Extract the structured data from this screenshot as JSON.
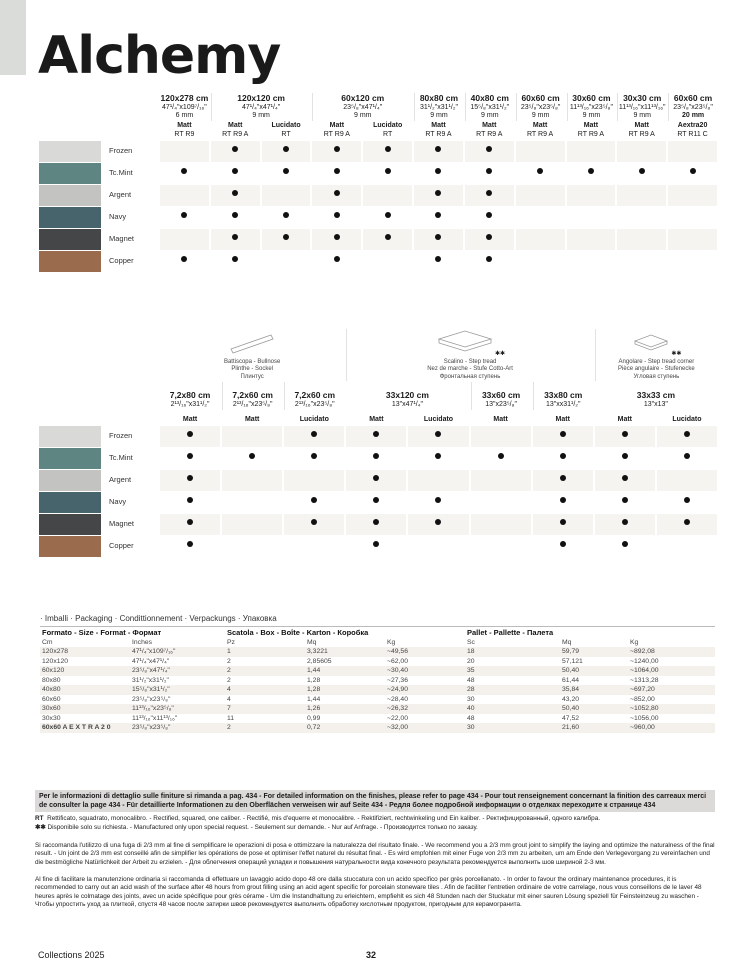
{
  "title": "Alchemy",
  "colors": {
    "row_bg": "#f6f4f0",
    "dot": "#111111"
  },
  "finishes": [
    {
      "name": "Frozen",
      "swatch": "#d9d9d7"
    },
    {
      "name": "Tc.Mint",
      "swatch": "#5e8582"
    },
    {
      "name": "Argent",
      "swatch": "#c3c3c1"
    },
    {
      "name": "Navy",
      "swatch": "#47636b"
    },
    {
      "name": "Magnet",
      "swatch": "#454647"
    },
    {
      "name": "Copper",
      "swatch": "#9b6b4d"
    }
  ],
  "top_grid": {
    "groups": [
      {
        "size": "120x278 cm",
        "inches": "47¹/₄\"x109⁷/₁₆\"",
        "thickness": "6 mm",
        "cols": [
          {
            "finish": "Matt",
            "rect": "RT R9"
          }
        ]
      },
      {
        "size": "120x120 cm",
        "inches": "47¹/₄\"x47¹/₄\"",
        "thickness": "9 mm",
        "cols": [
          {
            "finish": "Matt",
            "rect": "RT R9 A"
          },
          {
            "finish": "Lucidato",
            "rect": "RT"
          }
        ]
      },
      {
        "size": "60x120 cm",
        "inches": "23⁵/₈\"x47¹/₄\"",
        "thickness": "9 mm",
        "cols": [
          {
            "finish": "Matt",
            "rect": "RT R9 A"
          },
          {
            "finish": "Lucidato",
            "rect": "RT"
          }
        ]
      },
      {
        "size": "80x80 cm",
        "inches": "31¹/₂\"x31¹/₂\"",
        "thickness": "9 mm",
        "cols": [
          {
            "finish": "Matt",
            "rect": "RT R9 A"
          }
        ]
      },
      {
        "size": "40x80 cm",
        "inches": "15⁵/₈\"x31¹/₂\"",
        "thickness": "9 mm",
        "cols": [
          {
            "finish": "Matt",
            "rect": "RT R9 A"
          }
        ]
      },
      {
        "size": "60x60 cm",
        "inches": "23⁵/₈\"x23⁵/₈\"",
        "thickness": "9 mm",
        "cols": [
          {
            "finish": "Matt",
            "rect": "RT R9 A"
          }
        ]
      },
      {
        "size": "30x60 cm",
        "inches": "11¹³/₁₆\"x23⁵/₈\"",
        "thickness": "9 mm",
        "cols": [
          {
            "finish": "Matt",
            "rect": "RT R9 A"
          }
        ]
      },
      {
        "size": "30x30 cm",
        "inches": "11¹³/₁₆\"x11¹³/₁₆\"",
        "thickness": "9 mm",
        "cols": [
          {
            "finish": "Matt",
            "rect": "RT R9 A"
          }
        ]
      },
      {
        "size": "60x60 cm",
        "inches": "23⁵/₈\"x23⁵/₈\"",
        "thickness": "20 mm",
        "cols": [
          {
            "finish": "Aextra20",
            "rect": "RT R11 C"
          }
        ]
      }
    ],
    "availability": [
      [
        0,
        1,
        1,
        1,
        1,
        1,
        1,
        0,
        0,
        0,
        0
      ],
      [
        1,
        1,
        1,
        1,
        1,
        1,
        1,
        1,
        1,
        1,
        1
      ],
      [
        0,
        1,
        0,
        1,
        0,
        1,
        1,
        0,
        0,
        0,
        0
      ],
      [
        1,
        1,
        1,
        1,
        1,
        1,
        1,
        0,
        0,
        0,
        0
      ],
      [
        0,
        1,
        1,
        1,
        1,
        1,
        1,
        0,
        0,
        0,
        0
      ],
      [
        1,
        1,
        0,
        1,
        0,
        1,
        1,
        0,
        0,
        0,
        0
      ]
    ]
  },
  "bottom_grid": {
    "pieces": [
      {
        "label": [
          "Battiscopa - Bullnose",
          "Plinthe - Sockel",
          "Плинтус"
        ],
        "span": 3,
        "icon": "bullnose-icon",
        "asterisk": ""
      },
      {
        "label": [
          "Scalino - Step tread",
          "Nez de marche - Stufe Cotto-Art",
          "Фронтальная ступень"
        ],
        "span": 4,
        "icon": "step-tread-icon",
        "asterisk": "✱✱"
      },
      {
        "label": [
          "Angolare - Step tread corner",
          "Pièce angulaire - Stufenecke",
          "Угловая ступень"
        ],
        "span": 2,
        "icon": "step-corner-icon",
        "asterisk": "✱✱"
      }
    ],
    "groups": [
      {
        "size": "7,2x80 cm",
        "inches": "2¹³/₁₆\"x31¹/₂\"",
        "cols": [
          "Matt"
        ]
      },
      {
        "size": "7,2x60 cm",
        "inches": "2¹³/₁₆\"x23⁵/₈\"",
        "cols": [
          "Matt"
        ]
      },
      {
        "size": "7,2x60 cm",
        "inches": "2¹³/₁₆\"x23⁵/₈\"",
        "cols": [
          "Lucidato"
        ]
      },
      {
        "size": "33x120 cm",
        "inches": "13\"x47¹/₄\"",
        "cols": [
          "Matt",
          "Lucidato"
        ]
      },
      {
        "size": "33x60 cm",
        "inches": "13\"x23⁵/₈\"",
        "cols": [
          "Matt"
        ]
      },
      {
        "size": "33x80 cm",
        "inches": "13\"xx31¹/₂\"",
        "cols": [
          "Matt"
        ]
      },
      {
        "size": "33x33 cm",
        "inches": "13\"x13\"",
        "cols": [
          "Matt",
          "Lucidato"
        ]
      }
    ],
    "availability": [
      [
        1,
        0,
        1,
        1,
        1,
        0,
        1,
        1,
        1
      ],
      [
        1,
        1,
        1,
        1,
        1,
        1,
        1,
        1,
        1
      ],
      [
        1,
        0,
        0,
        1,
        0,
        0,
        1,
        1,
        0
      ],
      [
        1,
        0,
        1,
        1,
        1,
        0,
        1,
        1,
        1
      ],
      [
        1,
        0,
        1,
        1,
        1,
        0,
        1,
        1,
        1
      ],
      [
        1,
        0,
        0,
        1,
        0,
        0,
        1,
        1,
        0
      ]
    ]
  },
  "packaging": {
    "title": "· Imballi · Packaging · Condittionnement · Verpackungs · Упаковка",
    "sections": [
      "Formato - Size - Format - Формат",
      "Scatola - Box - Boîte - Karton - Коробка",
      "Pallet - Pallette - Палета"
    ],
    "headers": [
      "Cm",
      "Inches",
      "Pz",
      "Mq",
      "Kg",
      "Sc",
      "Mq",
      "Kg"
    ],
    "rows": [
      [
        "120x278",
        "47¹/₄\"x109⁷/₁₆\"",
        "1",
        "3,3221",
        "~49,56",
        "18",
        "59,79",
        "~892,08"
      ],
      [
        "120x120",
        "47¹/₄\"x47¹/₄\"",
        "2",
        "2,85605",
        "~62,00",
        "20",
        "57,121",
        "~1240,00"
      ],
      [
        "60x120",
        "23⁵/₈\"x47¹/₄\"",
        "2",
        "1,44",
        "~30,40",
        "35",
        "50,40",
        "~1064,00"
      ],
      [
        "80x80",
        "31¹/₂\"x31¹/₂\"",
        "2",
        "1,28",
        "~27,36",
        "48",
        "61,44",
        "~1313,28"
      ],
      [
        "40x80",
        "15⁵/₈\"x31¹/₂\"",
        "4",
        "1,28",
        "~24,90",
        "28",
        "35,84",
        "~697,20"
      ],
      [
        "60x60",
        "23⁵/₈\"x23⁵/₈\"",
        "4",
        "1,44",
        "~28,40",
        "30",
        "43,20",
        "~852,00"
      ],
      [
        "30x60",
        "11¹³/₁₆\"x23⁵/₈\"",
        "7",
        "1,26",
        "~26,32",
        "40",
        "50,40",
        "~1052,80"
      ],
      [
        "30x30",
        "11¹³/₁₆\"x11¹³/₁₆\"",
        "11",
        "0,99",
        "~22,00",
        "48",
        "47,52",
        "~1056,00"
      ],
      [
        "60x60 A E X T R A 2 0",
        "23⁵/₈\"x23⁵/₈\"",
        "2",
        "0,72",
        "~32,00",
        "30",
        "21,60",
        "~960,00"
      ]
    ]
  },
  "notes": {
    "bar": "Per le informazioni di dettaglio sulle finiture si rimanda a pag. 434 - For detailed information on the finishes, please refer to page 434 - Pour tout renseignement concernant la finition des carreaux merci de consulter la page 434 - Für detaillierte Informationen zu den Oberflächen verweisen wir auf Seite 434 - Редля более подробной информации о отделках переходите к странице 434",
    "rt_key": "RT",
    "rt": "Rettificato, squadrato, monocalibro. - Rectified, squared, one caliber. - Rectifié, mis d'equerre et monocalibre. - Rektifiziert, rechtwinkeling und Ein kaliber. - Ректифицированный, одного калибра.",
    "ast_key": "✱✱",
    "ast": "Disponibile solo su richiesta. - Manufactured only upon special request. - Seulement sur demande. - Nur auf Anfrage. - Производится только по заказу.",
    "grout": "Si raccomanda l'utilizzo di una fuga di 2/3 mm al fine di semplificare le operazioni di posa e ottimizzare la naturalezza del risultato finale. - We recommend you a 2/3 mm grout joint to simplify the laying and optimize the naturalness of the final result. - Un joint de 2/3 mm est conseillé afin de simplifier les opérations de pose et optimiser l'effet naturel du résultat final. - Es wird empfohlen mit einer Fuge von 2/3 mm zu arbeiten, um am Ende den Verlegevorgang zu vereinfachen und die bestmögliche Natürlichkeit der Arbeit zu erzielen. - Для облегчения операций укладки и повышения натуральности вида конечного результата рекомендуется выполнить шов шириной 2-3 мм.",
    "maintenance": "Al fine di facilitare la manutenzione ordinaria si raccomanda di effettuare un lavaggio acido dopo 48 ore dalla stuccatura con un acido specifico per grès porcellanato. - In order to favour the ordinary maintenance procedures, it is recommended to carry out an acid wash of the surface after 48 hours from grout filling using an acid agent specific for porcelain stoneware tiles . Afin de faciliter l'entretien ordinaire de votre carrelage, nous vous conseillons de le laver 48 heures après le colmatage des joints, avec un acide spécifique pour grès cérame - Um die Instandhaltung zu erleichtern, empfiehlt es sich 48 Stunden nach der Stuckatur mit einer sauren Lösung speziell für Feinsteinzeug zu waschen - Чтобы упростить уход за плиткой, спустя 48 часов после затирки швов рекомендуется выполнить обработку кислотным продуктом, пригодным для керамогранита."
  },
  "footer": {
    "collection": "Collections 2025",
    "page": "32"
  }
}
